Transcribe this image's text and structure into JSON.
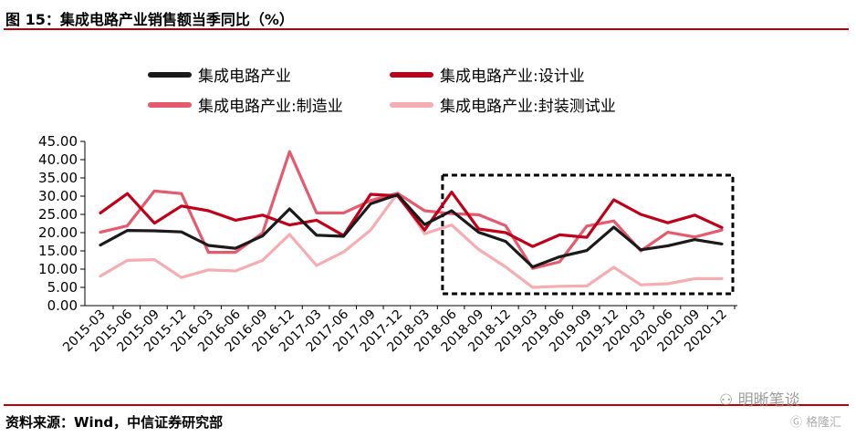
{
  "header": {
    "title": "图 15：集成电路产业销售额当季同比（%）"
  },
  "footer": {
    "source": "资料来源：Wind，中信证券研究部"
  },
  "watermark": {
    "text": "明晰笔谈",
    "sub": "格隆汇"
  },
  "colors": {
    "rule": "#c00000"
  },
  "chart_data": {
    "type": "line",
    "x": [
      "2015-03",
      "2015-06",
      "2015-09",
      "2015-12",
      "2016-03",
      "2016-06",
      "2016-09",
      "2016-12",
      "2017-03",
      "2017-06",
      "2017-09",
      "2017-12",
      "2018-03",
      "2018-06",
      "2018-09",
      "2018-12",
      "2019-03",
      "2019-06",
      "2019-09",
      "2019-12",
      "2020-03",
      "2020-06",
      "2020-09",
      "2020-12"
    ],
    "ylim": [
      0,
      45
    ],
    "yticks": [
      "0.00",
      "5.00",
      "10.00",
      "15.00",
      "20.00",
      "25.00",
      "30.00",
      "35.00",
      "40.00",
      "45.00"
    ],
    "grid": false,
    "legend_position": "top",
    "highlight_box": {
      "from": "2018-06",
      "to": "2020-12"
    },
    "series": [
      {
        "name": "集成电路产业",
        "color": "#1a1a1a",
        "values": [
          16.6,
          20.6,
          20.5,
          20.2,
          16.5,
          15.7,
          19.1,
          26.5,
          19.3,
          19.0,
          27.9,
          30.4,
          22.2,
          26.0,
          20.1,
          17.6,
          10.6,
          13.4,
          15.1,
          21.5,
          15.3,
          16.4,
          18.1,
          16.9
        ]
      },
      {
        "name": "集成电路产业:设计业",
        "color": "#c00018",
        "values": [
          25.4,
          30.7,
          22.6,
          27.3,
          26.0,
          23.4,
          24.8,
          22.1,
          23.4,
          19.2,
          30.5,
          30.1,
          20.7,
          31.1,
          21.0,
          20.0,
          16.2,
          19.4,
          18.7,
          29.0,
          25.0,
          22.7,
          24.8,
          21.4
        ]
      },
      {
        "name": "集成电路产业:制造业",
        "color": "#e65a6e",
        "values": [
          20.1,
          21.9,
          31.4,
          30.7,
          14.6,
          14.6,
          19.9,
          42.2,
          25.4,
          25.4,
          28.8,
          30.8,
          26.0,
          25.2,
          24.9,
          21.9,
          10.2,
          12.0,
          21.8,
          23.2,
          15.0,
          20.1,
          18.8,
          20.7
        ]
      },
      {
        "name": "集成电路产业:封装测试业",
        "color": "#f6adb1",
        "values": [
          8.1,
          12.4,
          12.6,
          7.7,
          9.8,
          9.5,
          12.4,
          19.5,
          11.0,
          14.7,
          20.7,
          30.8,
          19.7,
          22.1,
          15.4,
          10.6,
          5.0,
          5.3,
          5.4,
          10.5,
          5.7,
          6.0,
          7.4,
          7.4
        ]
      }
    ]
  }
}
